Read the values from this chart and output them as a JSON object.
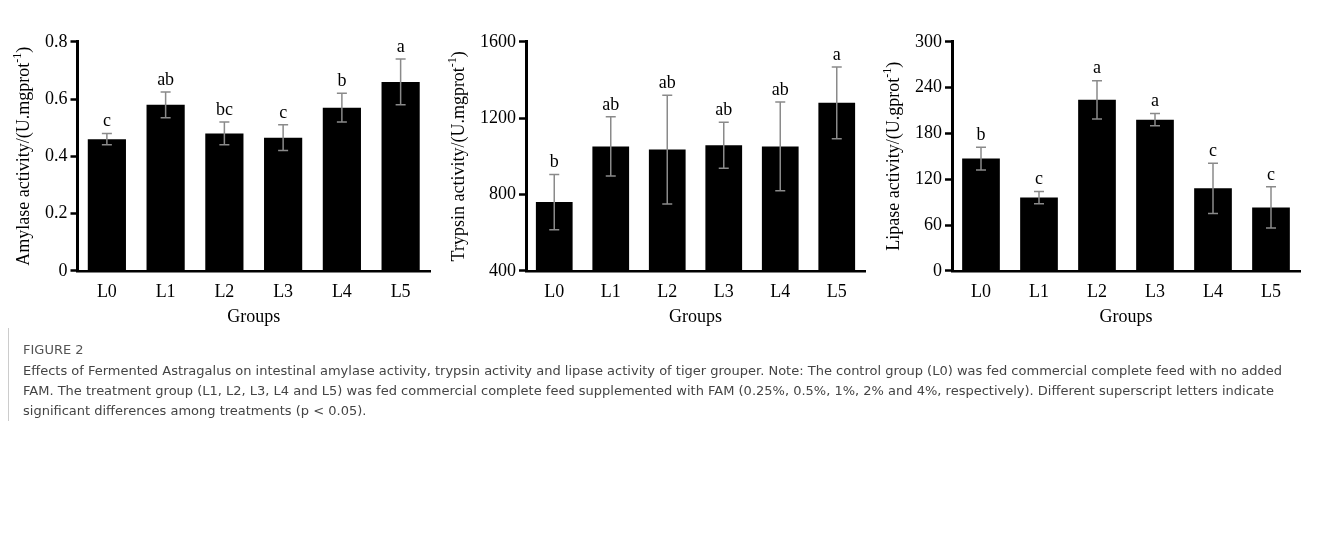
{
  "chart_data": [
    {
      "type": "bar",
      "xlabel": "Groups",
      "ylabel": "Amylase activity/(U.mgprot$^{-1}$)",
      "categories": [
        "L0",
        "L1",
        "L2",
        "L3",
        "L4",
        "L5"
      ],
      "values": [
        0.46,
        0.58,
        0.48,
        0.465,
        0.57,
        0.66
      ],
      "errors": [
        0.02,
        0.045,
        0.04,
        0.045,
        0.05,
        0.08
      ],
      "color": "#000000",
      "ylim": [
        0,
        0.8
      ],
      "yticks": [
        0,
        0.2,
        0.4,
        0.6,
        0.8
      ],
      "annotations": [
        {
          "text": "c",
          "x": "L0",
          "y": 0.48
        },
        {
          "text": "ab",
          "x": "L1",
          "y": 0.625
        },
        {
          "text": "bc",
          "x": "L2",
          "y": 0.52
        },
        {
          "text": "c",
          "x": "L3",
          "y": 0.51
        },
        {
          "text": "b",
          "x": "L4",
          "y": 0.62
        },
        {
          "text": "a",
          "x": "L5",
          "y": 0.74
        }
      ]
    },
    {
      "type": "bar",
      "xlabel": "Groups",
      "ylabel": "Trypsin activity/(U.mgprot$^{-1}$)",
      "categories": [
        "L0",
        "L1",
        "L2",
        "L3",
        "L4",
        "L5"
      ],
      "values": [
        760,
        1052,
        1035,
        1058,
        1052,
        1280
      ],
      "errors": [
        145,
        155,
        285,
        120,
        233,
        188
      ],
      "color": "#000000",
      "ylim": [
        400,
        1600
      ],
      "yticks": [
        400,
        800,
        1200,
        1600
      ],
      "annotations": [
        {
          "text": "b",
          "x": "L0",
          "y": 905
        },
        {
          "text": "ab",
          "x": "L1",
          "y": 1207
        },
        {
          "text": "ab",
          "x": "L2",
          "y": 1320
        },
        {
          "text": "ab",
          "x": "L3",
          "y": 1178
        },
        {
          "text": "ab",
          "x": "L4",
          "y": 1285
        },
        {
          "text": "a",
          "x": "L5",
          "y": 1468
        }
      ]
    },
    {
      "type": "bar",
      "xlabel": "Groups",
      "ylabel": "Lipase activity/(U.gprot$^{-1}$)",
      "categories": [
        "L0",
        "L1",
        "L2",
        "L3",
        "L4",
        "L5"
      ],
      "values": [
        147,
        96,
        224,
        198,
        108,
        83
      ],
      "errors": [
        15,
        8,
        25,
        8,
        33,
        27
      ],
      "color": "#000000",
      "ylim": [
        0,
        300
      ],
      "yticks": [
        0,
        60,
        120,
        180,
        240,
        300
      ],
      "annotations": [
        {
          "text": "b",
          "x": "L0",
          "y": 162
        },
        {
          "text": "c",
          "x": "L1",
          "y": 104
        },
        {
          "text": "a",
          "x": "L2",
          "y": 249
        },
        {
          "text": "a",
          "x": "L3",
          "y": 206
        },
        {
          "text": "c",
          "x": "L4",
          "y": 141
        },
        {
          "text": "c",
          "x": "L5",
          "y": 110
        }
      ]
    },
    {
      "type": "other",
      "title": "FIGURE 2",
      "annotations": [
        "Effects of Fermented Astragalus on intestinal amylase activity, trypsin activity and lipase activity of tiger grouper. Note: The control group (L0) was fed commercial complete feed with no added FAM. The treatment group (L1, L2, L3, L4 and L5) was fed commercial complete feed supplemented with FAM (0.25%, 0.5%, 1%, 2% and 4%, respectively). Different superscript letters indicate significant differences among treatments (p < 0.05)."
      ]
    }
  ]
}
